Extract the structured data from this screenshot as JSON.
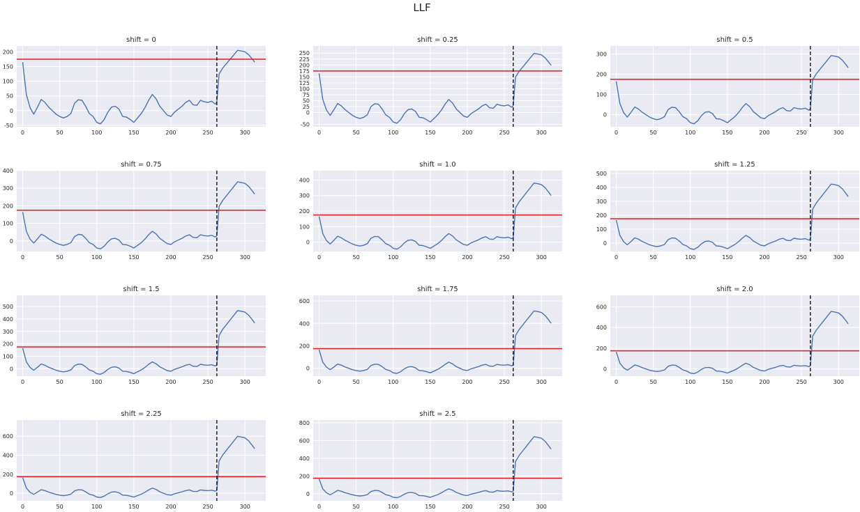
{
  "figure_title": "LLF",
  "colors": {
    "plot_background": "#eaeaf2",
    "grid": "#ffffff",
    "series_line": "#4c72b0",
    "threshold_line": "#e41a1c",
    "vline": "#000000"
  },
  "chart_data": [
    {
      "type": "line",
      "title": "shift = 0",
      "xlim": [
        -8,
        328
      ],
      "ylim": [
        -55,
        220
      ],
      "xticks": [
        0,
        50,
        100,
        150,
        200,
        250,
        300
      ],
      "yticks": [
        -50,
        0,
        50,
        100,
        150,
        200
      ],
      "threshold": 175,
      "vline_x": 262,
      "shift": 0,
      "grid": true
    },
    {
      "type": "line",
      "title": "shift = 0.25",
      "xlim": [
        -8,
        328
      ],
      "ylim": [
        -60,
        280
      ],
      "xticks": [
        0,
        50,
        100,
        150,
        200,
        250,
        300
      ],
      "yticks": [
        -50,
        0,
        25,
        50,
        75,
        100,
        125,
        150,
        175,
        200,
        225,
        250
      ],
      "threshold": 175,
      "vline_x": 262,
      "shift": 0.25,
      "grid": true
    },
    {
      "type": "line",
      "title": "shift = 0.5",
      "xlim": [
        -8,
        328
      ],
      "ylim": [
        -60,
        340
      ],
      "xticks": [
        0,
        50,
        100,
        150,
        200,
        250,
        300
      ],
      "yticks": [
        0,
        100,
        200,
        300
      ],
      "threshold": 175,
      "vline_x": 262,
      "shift": 0.5,
      "grid": true
    },
    {
      "type": "line",
      "title": "shift = 0.75",
      "xlim": [
        -8,
        328
      ],
      "ylim": [
        -60,
        400
      ],
      "xticks": [
        0,
        50,
        100,
        150,
        200,
        250,
        300
      ],
      "yticks": [
        0,
        100,
        200,
        300,
        400
      ],
      "threshold": 175,
      "vline_x": 262,
      "shift": 0.75,
      "grid": true
    },
    {
      "type": "line",
      "title": "shift = 1.0",
      "xlim": [
        -8,
        328
      ],
      "ylim": [
        -60,
        460
      ],
      "xticks": [
        0,
        50,
        100,
        150,
        200,
        250,
        300
      ],
      "yticks": [
        0,
        100,
        200,
        300,
        400
      ],
      "threshold": 175,
      "vline_x": 262,
      "shift": 1.0,
      "grid": true
    },
    {
      "type": "line",
      "title": "shift = 1.25",
      "xlim": [
        -8,
        328
      ],
      "ylim": [
        -60,
        520
      ],
      "xticks": [
        0,
        50,
        100,
        150,
        200,
        250,
        300
      ],
      "yticks": [
        0,
        100,
        200,
        300,
        400,
        500
      ],
      "threshold": 175,
      "vline_x": 262,
      "shift": 1.25,
      "grid": true
    },
    {
      "type": "line",
      "title": "shift = 1.5",
      "xlim": [
        -8,
        328
      ],
      "ylim": [
        -60,
        590
      ],
      "xticks": [
        0,
        50,
        100,
        150,
        200,
        250,
        300
      ],
      "yticks": [
        0,
        100,
        200,
        300,
        400,
        500
      ],
      "threshold": 175,
      "vline_x": 262,
      "shift": 1.5,
      "grid": true
    },
    {
      "type": "line",
      "title": "shift = 1.75",
      "xlim": [
        -8,
        328
      ],
      "ylim": [
        -70,
        650
      ],
      "xticks": [
        0,
        50,
        100,
        150,
        200,
        250,
        300
      ],
      "yticks": [
        0,
        200,
        400,
        600
      ],
      "threshold": 175,
      "vline_x": 262,
      "shift": 1.75,
      "grid": true
    },
    {
      "type": "line",
      "title": "shift = 2.0",
      "xlim": [
        -8,
        328
      ],
      "ylim": [
        -70,
        710
      ],
      "xticks": [
        0,
        50,
        100,
        150,
        200,
        250,
        300
      ],
      "yticks": [
        0,
        200,
        400,
        600
      ],
      "threshold": 175,
      "vline_x": 262,
      "shift": 2.0,
      "grid": true
    },
    {
      "type": "line",
      "title": "shift = 2.25",
      "xlim": [
        -8,
        328
      ],
      "ylim": [
        -80,
        770
      ],
      "xticks": [
        0,
        50,
        100,
        150,
        200,
        250,
        300
      ],
      "yticks": [
        0,
        200,
        400,
        600
      ],
      "threshold": 175,
      "vline_x": 262,
      "shift": 2.25,
      "grid": true
    },
    {
      "type": "line",
      "title": "shift = 2.5",
      "xlim": [
        -8,
        328
      ],
      "ylim": [
        -80,
        830
      ],
      "xticks": [
        0,
        50,
        100,
        150,
        200,
        250,
        300
      ],
      "yticks": [
        0,
        200,
        400,
        600,
        800
      ],
      "threshold": 175,
      "vline_x": 262,
      "shift": 2.5,
      "grid": true
    }
  ],
  "base_series": {
    "x": [
      0,
      5,
      10,
      15,
      20,
      25,
      30,
      35,
      40,
      45,
      50,
      55,
      60,
      65,
      70,
      75,
      80,
      85,
      90,
      95,
      100,
      105,
      110,
      115,
      120,
      125,
      130,
      135,
      140,
      145,
      150,
      155,
      160,
      165,
      170,
      175,
      180,
      185,
      190,
      195,
      200,
      205,
      210,
      215,
      220,
      225,
      230,
      235,
      240,
      245,
      250,
      255,
      260
    ],
    "y": [
      165,
      55,
      10,
      -12,
      12,
      38,
      28,
      12,
      0,
      -12,
      -20,
      -25,
      -20,
      -10,
      25,
      37,
      35,
      15,
      -10,
      -20,
      -40,
      -45,
      -30,
      -5,
      12,
      15,
      5,
      -20,
      -22,
      -30,
      -40,
      -25,
      -10,
      10,
      35,
      55,
      40,
      15,
      0,
      -15,
      -20,
      -5,
      5,
      15,
      28,
      35,
      20,
      18,
      35,
      30,
      28,
      32,
      22
    ]
  },
  "post_change_segment": {
    "x": [
      262,
      265,
      270,
      275,
      280,
      285,
      290,
      295,
      300,
      305,
      310,
      313
    ],
    "y": [
      30,
      125,
      145,
      160,
      175,
      190,
      205,
      203,
      200,
      190,
      175,
      165
    ]
  }
}
